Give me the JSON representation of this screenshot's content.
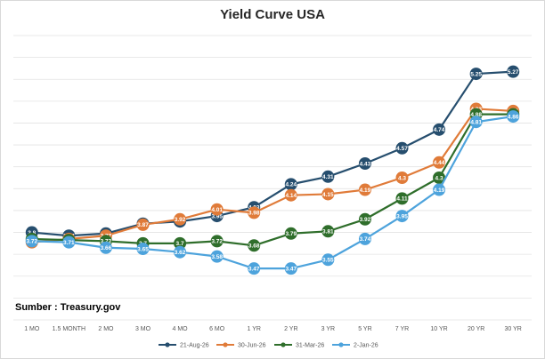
{
  "chart_data": {
    "type": "line",
    "title": "Yield Curve USA",
    "source": "Sumber : Treasury.gov",
    "categories": [
      "1 MO",
      "1.5 MONTH",
      "2 MO",
      "3 MO",
      "4 MO",
      "6 MO",
      "1 YR",
      "2 YR",
      "3 YR",
      "5 YR",
      "7 YR",
      "10 YR",
      "20 YR",
      "30 YR"
    ],
    "ylim": [
      3.0,
      5.6
    ],
    "grid": true,
    "legend_position": "bottom",
    "series": [
      {
        "name": "21-Aug-26",
        "color": "#264e6e",
        "values": [
          3.8,
          3.77,
          3.79,
          3.88,
          3.9,
          3.95,
          4.03,
          4.24,
          4.31,
          4.43,
          4.57,
          4.74,
          5.25,
          5.27
        ]
      },
      {
        "name": "30-Jun-26",
        "color": "#e07b39",
        "values": [
          3.71,
          3.74,
          3.77,
          3.87,
          3.92,
          4.01,
          3.98,
          4.14,
          4.15,
          4.19,
          4.3,
          4.44,
          4.93,
          4.91
        ]
      },
      {
        "name": "31-Mar-26",
        "color": "#2f6e2b",
        "values": [
          3.74,
          3.73,
          3.72,
          3.7,
          3.7,
          3.72,
          3.68,
          3.79,
          3.81,
          3.92,
          4.11,
          4.3,
          4.88,
          4.88
        ]
      },
      {
        "name": "2-Jan-26",
        "color": "#4da3dc",
        "values": [
          3.72,
          3.71,
          3.66,
          3.65,
          3.62,
          3.58,
          3.47,
          3.47,
          3.55,
          3.74,
          3.95,
          4.19,
          4.81,
          4.86
        ]
      }
    ]
  }
}
